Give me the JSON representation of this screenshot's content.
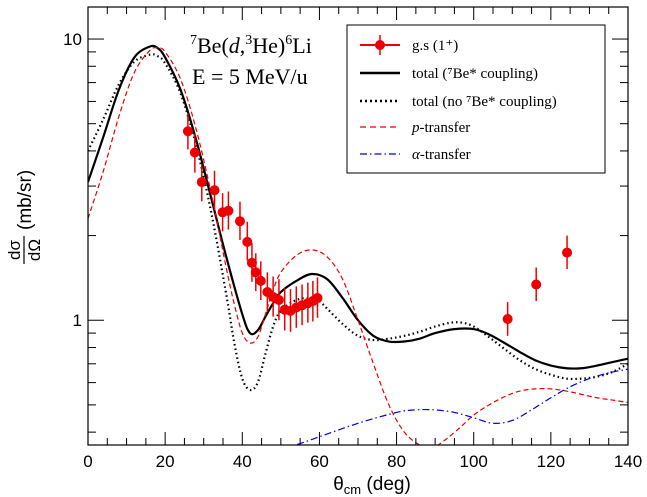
{
  "chart_data": {
    "type": "line",
    "x_axis": {
      "label_main": "θ",
      "label_sub": "cm",
      "label_unit": " (deg)",
      "range": [
        0,
        140
      ],
      "ticks": [
        0,
        20,
        40,
        60,
        80,
        100,
        120,
        140
      ],
      "tick_labels": [
        "0",
        "20",
        "40",
        "60",
        "80",
        "100",
        "120",
        "140"
      ]
    },
    "y_axis": {
      "scale": "log",
      "label_num": "dσ",
      "label_den": "dΩ",
      "label_unit": "(mb/sr)",
      "range": [
        0.36,
        13.0
      ],
      "ticks": [
        1,
        10
      ],
      "tick_labels": [
        "1",
        "10"
      ]
    },
    "annotation": {
      "reaction": {
        "sup1": "7",
        "t1": "Be(",
        "t2": "d",
        "t3": ",",
        "sup2": "3",
        "t4": "He)",
        "sup3": "6",
        "t5": "Li"
      },
      "energy": "E = 5 MeV/u"
    },
    "legend": {
      "position": "top-right",
      "entries": [
        {
          "key": "data",
          "label": "g.s (1⁺)"
        },
        {
          "key": "total",
          "label": "total (⁷Be* coupling)"
        },
        {
          "key": "nocoup",
          "label": "total (no ⁷Be* coupling)"
        },
        {
          "key": "p",
          "label_italic": "p",
          "label": "-transfer"
        },
        {
          "key": "alpha",
          "label_italic": "α",
          "label": "-transfer"
        }
      ]
    },
    "colors": {
      "data": "#ee0000",
      "total": "#000000",
      "nocoup": "#000000",
      "p": "#ee0000",
      "alpha": "#0000dd"
    },
    "data_points": {
      "name": "g.s (1⁺)",
      "points": [
        {
          "x": 25.9,
          "y": 4.7,
          "lo": 4.05,
          "hi": 5.45
        },
        {
          "x": 27.7,
          "y": 3.95,
          "lo": 3.35,
          "hi": 4.6
        },
        {
          "x": 29.5,
          "y": 3.1,
          "lo": 2.65,
          "hi": 3.6
        },
        {
          "x": 32.8,
          "y": 2.9,
          "lo": 2.48,
          "hi": 3.4
        },
        {
          "x": 34.9,
          "y": 2.42,
          "lo": 2.07,
          "hi": 2.83
        },
        {
          "x": 36.4,
          "y": 2.45,
          "lo": 2.1,
          "hi": 2.87
        },
        {
          "x": 39.4,
          "y": 2.25,
          "lo": 1.93,
          "hi": 2.64
        },
        {
          "x": 41.3,
          "y": 1.9,
          "lo": 1.63,
          "hi": 2.24
        },
        {
          "x": 42.5,
          "y": 1.6,
          "lo": 1.37,
          "hi": 1.88
        },
        {
          "x": 43.5,
          "y": 1.48,
          "lo": 1.27,
          "hi": 1.73
        },
        {
          "x": 44.8,
          "y": 1.38,
          "lo": 1.18,
          "hi": 1.62
        },
        {
          "x": 46.5,
          "y": 1.26,
          "lo": 1.07,
          "hi": 1.48
        },
        {
          "x": 48.0,
          "y": 1.21,
          "lo": 1.03,
          "hi": 1.43
        },
        {
          "x": 49.5,
          "y": 1.18,
          "lo": 1.0,
          "hi": 1.4
        },
        {
          "x": 51.0,
          "y": 1.09,
          "lo": 0.92,
          "hi": 1.3
        },
        {
          "x": 52.5,
          "y": 1.08,
          "lo": 0.91,
          "hi": 1.29
        },
        {
          "x": 54.0,
          "y": 1.11,
          "lo": 0.94,
          "hi": 1.32
        },
        {
          "x": 55.5,
          "y": 1.13,
          "lo": 0.96,
          "hi": 1.34
        },
        {
          "x": 57.0,
          "y": 1.15,
          "lo": 0.98,
          "hi": 1.36
        },
        {
          "x": 58.3,
          "y": 1.17,
          "lo": 0.99,
          "hi": 1.38
        },
        {
          "x": 59.5,
          "y": 1.2,
          "lo": 1.02,
          "hi": 1.42
        },
        {
          "x": 108.8,
          "y": 1.01,
          "lo": 0.88,
          "hi": 1.16
        },
        {
          "x": 116.2,
          "y": 1.34,
          "lo": 1.17,
          "hi": 1.54
        },
        {
          "x": 124.2,
          "y": 1.74,
          "lo": 1.52,
          "hi": 2.0
        }
      ]
    },
    "curves": [
      {
        "key": "total",
        "name": "total (⁷Be* coupling)",
        "x": [
          0,
          4,
          8,
          12,
          16,
          18,
          20,
          24,
          28,
          32,
          36,
          40,
          42,
          44,
          46,
          48,
          50,
          54,
          58,
          62,
          66,
          70,
          74,
          78,
          82,
          86,
          90,
          95,
          100,
          104,
          108,
          112,
          116,
          120,
          124,
          128,
          132,
          136,
          140
        ],
        "y": [
          3.1,
          4.5,
          6.6,
          8.6,
          9.4,
          9.3,
          8.6,
          6.6,
          4.4,
          2.7,
          1.65,
          1.05,
          0.9,
          0.92,
          1.03,
          1.15,
          1.26,
          1.38,
          1.46,
          1.4,
          1.2,
          1.0,
          0.88,
          0.84,
          0.84,
          0.86,
          0.9,
          0.93,
          0.93,
          0.89,
          0.83,
          0.77,
          0.72,
          0.69,
          0.675,
          0.675,
          0.69,
          0.71,
          0.73
        ]
      },
      {
        "key": "nocoup",
        "name": "total (no ⁷Be* coupling)",
        "x": [
          0,
          4,
          8,
          12,
          16,
          18,
          20,
          24,
          28,
          32,
          36,
          38,
          40,
          42,
          44,
          46,
          48,
          50,
          54,
          58,
          60,
          62,
          66,
          70,
          74,
          78,
          82,
          86,
          90,
          94,
          97,
          100,
          104,
          108,
          112,
          116,
          120,
          124,
          128,
          132,
          136,
          140
        ],
        "y": [
          4.0,
          5.2,
          6.9,
          8.3,
          8.8,
          8.7,
          8.2,
          6.4,
          4.2,
          2.4,
          1.2,
          0.82,
          0.62,
          0.565,
          0.6,
          0.76,
          0.95,
          1.08,
          1.18,
          1.2,
          1.17,
          1.1,
          0.97,
          0.88,
          0.85,
          0.86,
          0.88,
          0.91,
          0.95,
          0.98,
          0.98,
          0.95,
          0.87,
          0.79,
          0.72,
          0.67,
          0.64,
          0.62,
          0.62,
          0.63,
          0.655,
          0.7
        ]
      },
      {
        "key": "p",
        "name": "p-transfer",
        "x": [
          0,
          4,
          8,
          12,
          16,
          18,
          20,
          24,
          28,
          32,
          36,
          38,
          40,
          42,
          44,
          46,
          48,
          50,
          54,
          58,
          62,
          66,
          70,
          74,
          78,
          82,
          86,
          89,
          92,
          96,
          100,
          104,
          108,
          112,
          116,
          120,
          124,
          128,
          132,
          136,
          140
        ],
        "y": [
          2.3,
          3.4,
          5.3,
          7.6,
          9.1,
          9.3,
          9.0,
          7.2,
          4.8,
          2.8,
          1.5,
          1.13,
          0.9,
          0.83,
          0.87,
          1.05,
          1.28,
          1.48,
          1.7,
          1.78,
          1.68,
          1.4,
          1.0,
          0.7,
          0.5,
          0.4,
          0.36,
          0.35,
          0.37,
          0.41,
          0.46,
          0.5,
          0.535,
          0.56,
          0.57,
          0.57,
          0.56,
          0.545,
          0.53,
          0.52,
          0.51
        ]
      },
      {
        "key": "alpha",
        "name": "α-transfer",
        "x": [
          40,
          50,
          60,
          70,
          80,
          85,
          90,
          95,
          100,
          105,
          110,
          115,
          120,
          125,
          130,
          135,
          140
        ],
        "y": [
          0.31,
          0.345,
          0.385,
          0.43,
          0.47,
          0.48,
          0.48,
          0.47,
          0.45,
          0.43,
          0.44,
          0.48,
          0.53,
          0.58,
          0.62,
          0.65,
          0.67
        ]
      }
    ]
  }
}
